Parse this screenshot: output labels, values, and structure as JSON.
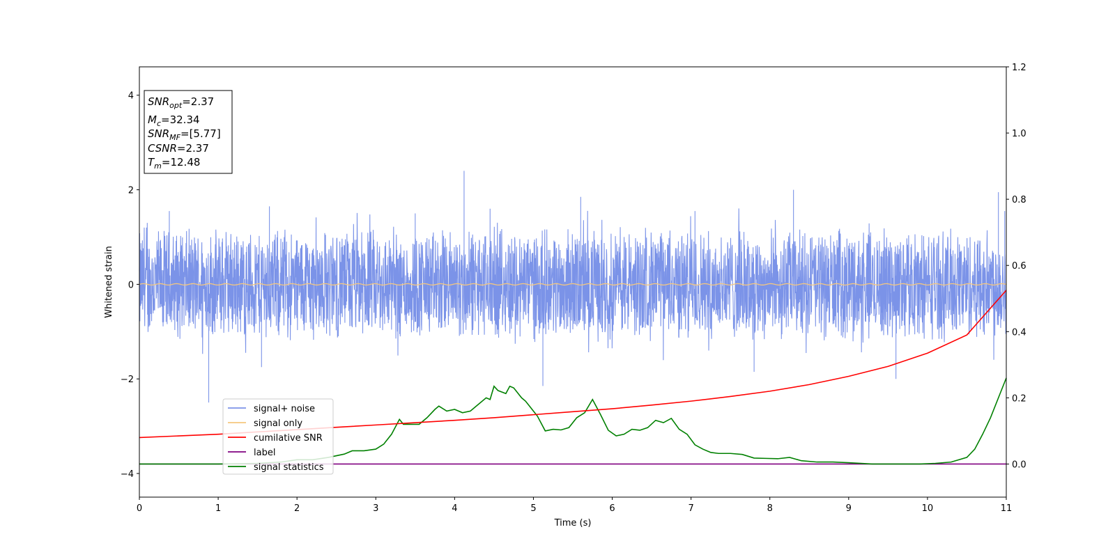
{
  "chart_data": {
    "type": "line",
    "xlabel": "Time (s)",
    "ylabel": "Whitened strain",
    "xlim": [
      0,
      11
    ],
    "ylim": [
      -4.5,
      4.6
    ],
    "y2lim": [
      -0.1,
      1.2
    ],
    "x_ticks": [
      "0",
      "1",
      "2",
      "3",
      "4",
      "5",
      "6",
      "7",
      "8",
      "9",
      "10",
      "11"
    ],
    "y_ticks": [
      "4",
      "2",
      "0",
      "−2",
      "−4"
    ],
    "y2_ticks": [
      "1.2",
      "1.0",
      "0.8",
      "0.6",
      "0.4",
      "0.2",
      "0.0"
    ],
    "grid": false,
    "legend_position": "lower-left",
    "info_box": {
      "snr_opt_label": "SNR",
      "snr_opt_sub": "opt",
      "snr_opt_value": "=2.37",
      "mc_label": "M",
      "mc_sub": "c",
      "mc_value": "=32.34",
      "snr_mf_label": "SNR",
      "snr_mf_sub": "MF",
      "snr_mf_value": "=[5.77]",
      "csnr_label": "CSNR",
      "csnr_value": "=2.37",
      "tm_label": "T",
      "tm_sub": "m",
      "tm_value": "=12.48"
    },
    "series": [
      {
        "name": "signal+ noise",
        "axis": "left",
        "color": "#7b93e8",
        "envelope": {
          "typical_amplitude": 1.0,
          "peak_max": 2.4,
          "peak_min": -2.5
        },
        "spikes": [
          {
            "x": 0.1,
            "y": 1.3
          },
          {
            "x": 0.38,
            "y": 1.55
          },
          {
            "x": 0.88,
            "y": -2.5
          },
          {
            "x": 1.55,
            "y": -1.75
          },
          {
            "x": 1.65,
            "y": 1.65
          },
          {
            "x": 3.5,
            "y": 1.5
          },
          {
            "x": 4.12,
            "y": 2.4
          },
          {
            "x": 4.45,
            "y": 1.6
          },
          {
            "x": 5.12,
            "y": -2.15
          },
          {
            "x": 5.6,
            "y": 1.85
          },
          {
            "x": 7.05,
            "y": 1.55
          },
          {
            "x": 7.8,
            "y": -1.85
          },
          {
            "x": 8.3,
            "y": 2.0
          },
          {
            "x": 9.6,
            "y": -2.0
          },
          {
            "x": 10.9,
            "y": 1.95
          },
          {
            "x": 10.98,
            "y": 1.55
          }
        ]
      },
      {
        "name": "signal only",
        "axis": "left",
        "color": "#f5c77e",
        "values": "approximately 0 throughout"
      },
      {
        "name": "cumilative SNR",
        "axis": "right",
        "color": "#ff0000",
        "x": [
          0,
          0.5,
          1,
          1.5,
          2,
          2.5,
          3,
          3.5,
          4,
          4.5,
          5,
          5.5,
          6,
          6.5,
          7,
          7.5,
          8,
          8.5,
          9,
          9.5,
          10,
          10.5,
          11
        ],
        "y": [
          0.08,
          0.085,
          0.09,
          0.097,
          0.104,
          0.111,
          0.118,
          0.125,
          0.132,
          0.14,
          0.149,
          0.158,
          0.167,
          0.178,
          0.19,
          0.204,
          0.22,
          0.24,
          0.265,
          0.295,
          0.335,
          0.39,
          0.525
        ]
      },
      {
        "name": "label",
        "axis": "right",
        "color": "#800080",
        "x": [
          0,
          11
        ],
        "y": [
          0.0,
          0.0
        ]
      },
      {
        "name": "signal statistics",
        "axis": "right",
        "color": "#008000",
        "x": [
          0,
          0.5,
          1,
          1.5,
          1.8,
          2.0,
          2.2,
          2.4,
          2.6,
          2.7,
          2.85,
          3.0,
          3.1,
          3.2,
          3.3,
          3.35,
          3.45,
          3.55,
          3.65,
          3.75,
          3.8,
          3.9,
          4.0,
          4.1,
          4.2,
          4.3,
          4.4,
          4.45,
          4.5,
          4.55,
          4.65,
          4.7,
          4.75,
          4.85,
          4.9,
          4.95,
          5.05,
          5.15,
          5.25,
          5.35,
          5.45,
          5.55,
          5.65,
          5.75,
          5.85,
          5.95,
          6.05,
          6.15,
          6.25,
          6.35,
          6.45,
          6.55,
          6.65,
          6.75,
          6.85,
          6.95,
          7.05,
          7.15,
          7.25,
          7.35,
          7.5,
          7.65,
          7.8,
          7.95,
          8.1,
          8.25,
          8.4,
          8.6,
          8.8,
          9.0,
          9.3,
          9.6,
          9.9,
          10.1,
          10.3,
          10.5,
          10.6,
          10.7,
          10.8,
          10.9,
          11.0
        ],
        "y": [
          0.0,
          0.0,
          0.0,
          0.002,
          0.006,
          0.013,
          0.013,
          0.02,
          0.03,
          0.04,
          0.04,
          0.045,
          0.06,
          0.09,
          0.135,
          0.12,
          0.12,
          0.12,
          0.14,
          0.165,
          0.175,
          0.16,
          0.165,
          0.155,
          0.16,
          0.18,
          0.2,
          0.195,
          0.235,
          0.222,
          0.213,
          0.235,
          0.23,
          0.2,
          0.19,
          0.175,
          0.145,
          0.1,
          0.105,
          0.103,
          0.11,
          0.14,
          0.155,
          0.195,
          0.15,
          0.102,
          0.085,
          0.09,
          0.105,
          0.102,
          0.11,
          0.132,
          0.125,
          0.138,
          0.105,
          0.09,
          0.058,
          0.045,
          0.035,
          0.032,
          0.032,
          0.029,
          0.018,
          0.017,
          0.016,
          0.02,
          0.01,
          0.006,
          0.006,
          0.004,
          0.0,
          0.0,
          0.0,
          0.002,
          0.006,
          0.02,
          0.045,
          0.09,
          0.14,
          0.2,
          0.26
        ]
      }
    ]
  }
}
